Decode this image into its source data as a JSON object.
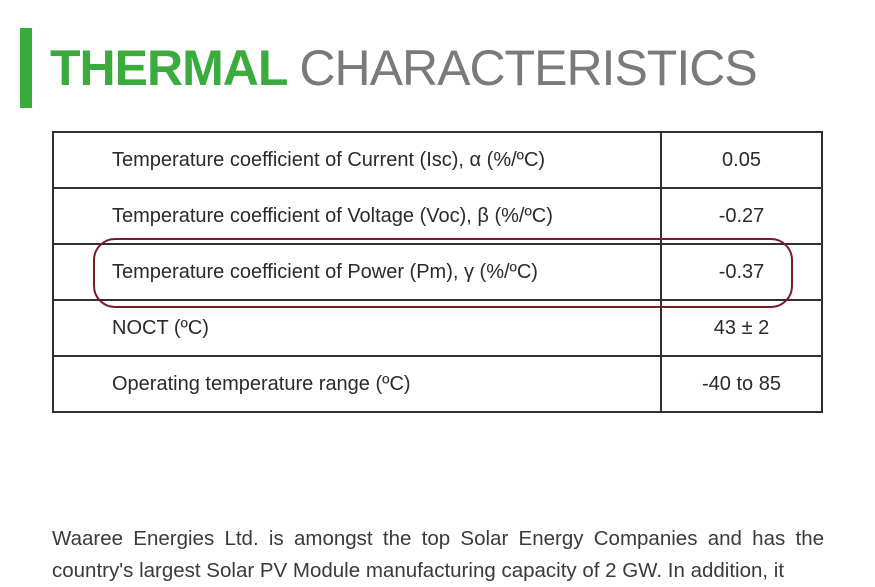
{
  "heading": {
    "bold": "THERMAL",
    "light": "CHARACTERISTICS"
  },
  "table": {
    "rows": [
      {
        "parameter": "Temperature coefficient of Current (Isc), α (%/ºC)",
        "value": "0.05"
      },
      {
        "parameter": "Temperature coefficient of Voltage (Voc), β (%/ºC)",
        "value": "-0.27"
      },
      {
        "parameter": "Temperature coefficient of Power (Pm), γ (%/ºC)",
        "value": "-0.37"
      },
      {
        "parameter": "NOCT (ºC)",
        "value": "43 ± 2"
      },
      {
        "parameter": "Operating temperature range (ºC)",
        "value": "-40 to 85"
      }
    ]
  },
  "colors": {
    "accent": "#3bab3e",
    "heading_light": "#7a7a7a",
    "highlight": "#7a1a2a"
  },
  "paragraph": "Waaree Energies Ltd. is amongst the top Solar Energy Companies and has the country's largest Solar PV Module manufacturing capacity of 2 GW. In addition, it"
}
